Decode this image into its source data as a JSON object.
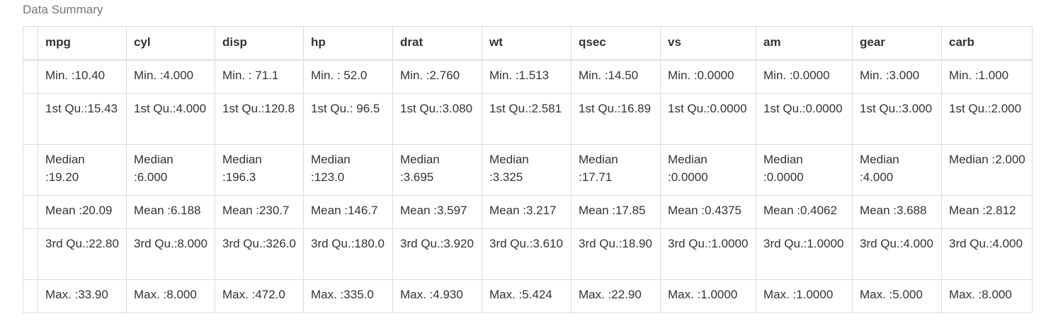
{
  "caption": "Data Summary",
  "table": {
    "columns": [
      "",
      "mpg",
      "cyl",
      "disp",
      "hp",
      "drat",
      "wt",
      "qsec",
      "vs",
      "am",
      "gear",
      "carb"
    ],
    "rows": [
      [
        "",
        "Min. :10.40",
        "Min. :4.000",
        "Min. : 71.1",
        "Min. : 52.0",
        "Min. :2.760",
        "Min. :1.513",
        "Min. :14.50",
        "Min. :0.0000",
        "Min. :0.0000",
        "Min. :3.000",
        "Min. :1.000"
      ],
      [
        "",
        "1st Qu.:15.43",
        "1st Qu.:4.000",
        "1st Qu.:120.8",
        "1st Qu.: 96.5",
        "1st Qu.:3.080",
        "1st Qu.:2.581",
        "1st Qu.:16.89",
        "1st Qu.:0.0000",
        "1st Qu.:0.0000",
        "1st Qu.:3.000",
        "1st Qu.:2.000"
      ],
      [
        "",
        "Median :19.20",
        "Median :6.000",
        "Median :196.3",
        "Median :123.0",
        "Median :3.695",
        "Median :3.325",
        "Median :17.71",
        "Median :0.0000",
        "Median :0.0000",
        "Median :4.000",
        "Median :2.000"
      ],
      [
        "",
        "Mean :20.09",
        "Mean :6.188",
        "Mean :230.7",
        "Mean :146.7",
        "Mean :3.597",
        "Mean :3.217",
        "Mean :17.85",
        "Mean :0.4375",
        "Mean :0.4062",
        "Mean :3.688",
        "Mean :2.812"
      ],
      [
        "",
        "3rd Qu.:22.80",
        "3rd Qu.:8.000",
        "3rd Qu.:326.0",
        "3rd Qu.:180.0",
        "3rd Qu.:3.920",
        "3rd Qu.:3.610",
        "3rd Qu.:18.90",
        "3rd Qu.:1.0000",
        "3rd Qu.:1.0000",
        "3rd Qu.:4.000",
        "3rd Qu.:4.000"
      ],
      [
        "",
        "Max. :33.90",
        "Max. :8.000",
        "Max. :472.0",
        "Max. :335.0",
        "Max. :4.930",
        "Max. :5.424",
        "Max. :22.90",
        "Max. :1.0000",
        "Max. :1.0000",
        "Max. :5.000",
        "Max. :8.000"
      ]
    ]
  }
}
